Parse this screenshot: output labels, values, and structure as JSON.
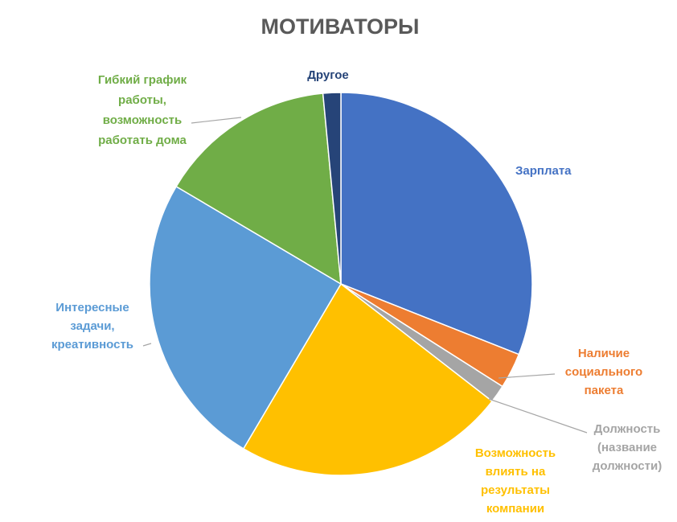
{
  "chart_data": {
    "type": "pie",
    "title": "МОТИВАТОРЫ",
    "slices": [
      {
        "label": [
          "Зарплата"
        ],
        "value": 31,
        "color": "#4472C4"
      },
      {
        "label": [
          "Наличие",
          "социального",
          "пакета"
        ],
        "value": 3,
        "color": "#ED7D31"
      },
      {
        "label": [
          "Должность",
          "(название",
          "должности)"
        ],
        "value": 1.5,
        "color": "#A5A5A5"
      },
      {
        "label": [
          "Возможность",
          "влиять на",
          "результаты",
          "компании"
        ],
        "value": 23,
        "color": "#FFC000"
      },
      {
        "label": [
          "Интересные",
          "задачи,",
          "креативность"
        ],
        "value": 25,
        "color": "#5B9BD5"
      },
      {
        "label": [
          "Гибкий график",
          "работы,",
          "возможность",
          "работать дома"
        ],
        "value": 15,
        "color": "#70AD47"
      },
      {
        "label": [
          "Другое"
        ],
        "value": 1.5,
        "color": "#264478"
      }
    ]
  }
}
